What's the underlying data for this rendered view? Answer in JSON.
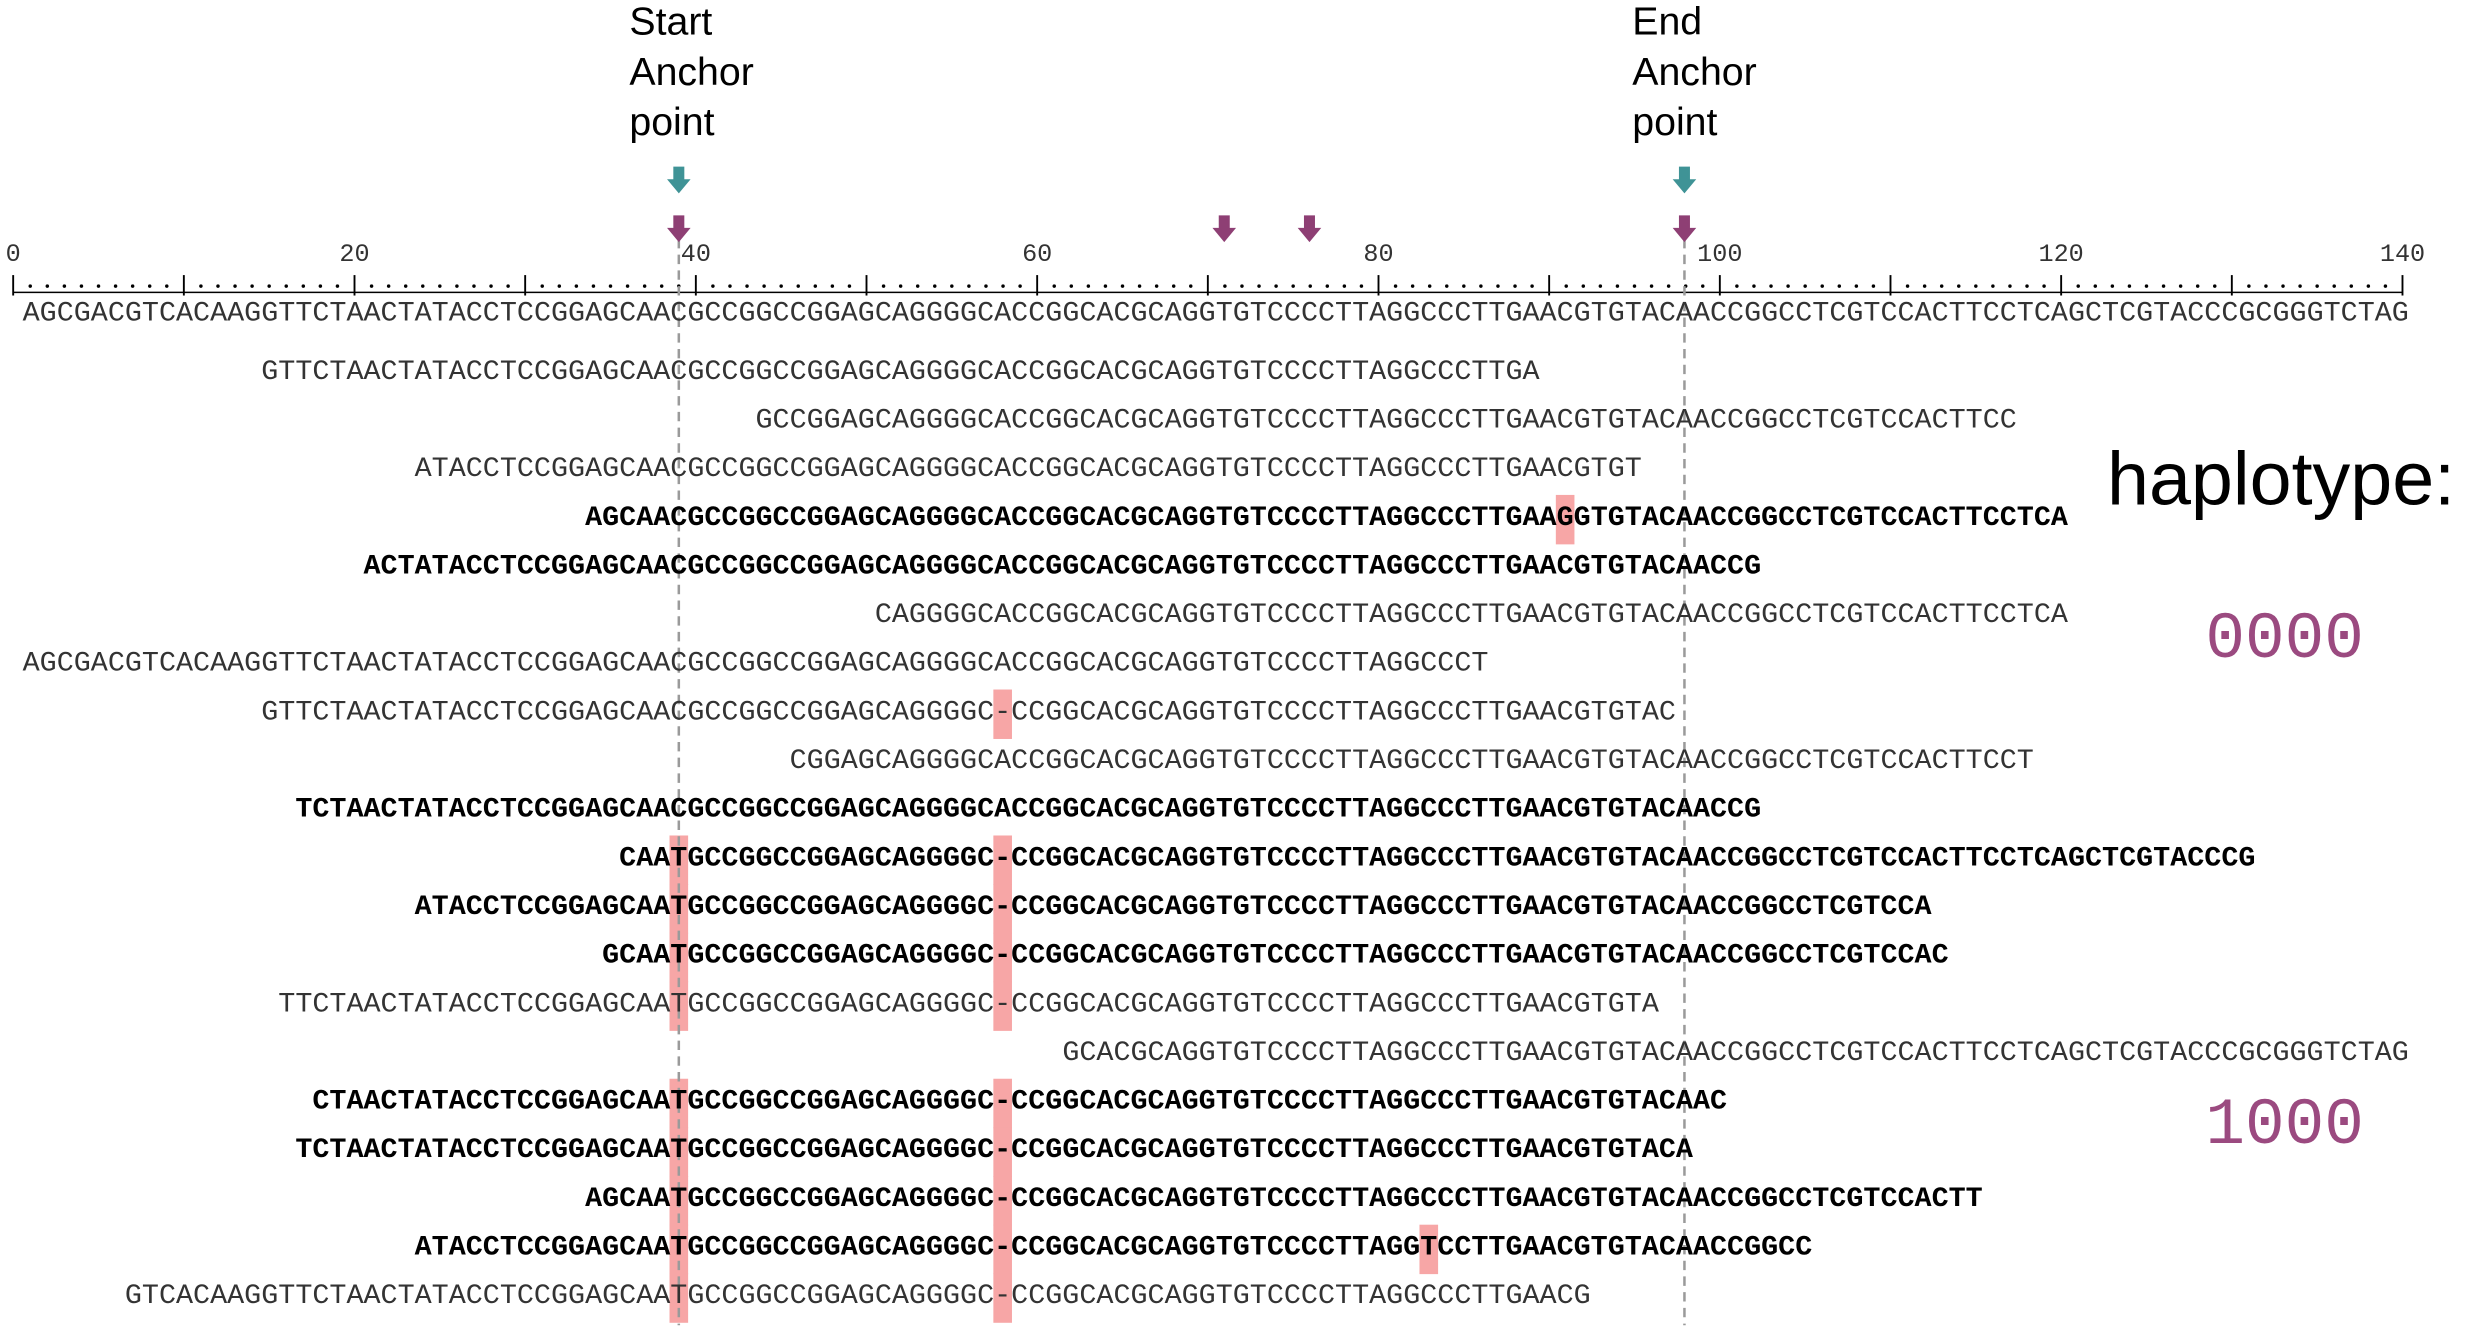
{
  "annotations": {
    "start_anchor": [
      "Start",
      "Anchor",
      "point"
    ],
    "end_anchor": [
      "End",
      "Anchor",
      "point"
    ]
  },
  "haplotype_label": "haplotype:",
  "haplotypes": [
    "0000",
    "1000"
  ],
  "ruler": {
    "ticks": [
      0,
      20,
      40,
      60,
      80,
      100,
      120,
      140
    ]
  },
  "reference": "AGCGACGTCACAAGGTTCTAACTATACCTCCGGAGCAACGCCGGCCGGAGCAGGGGCACCGGCACGCAGGTGTCCCCTTAGGCCCTTGAACGTGTACAACCGGCCTCGTCCACTTCCTCAGCTCGTACCCGCGGGTCTAG",
  "reads": [
    {
      "sequence": "GTTCTAACTATACCTCCGGAGCAACGCCGGCCGGAGCAGGGGCACCGGCACGCAGGTGTCCCCTTAGGCCCTTGA",
      "bold": false
    },
    {
      "sequence": "GCCGGAGCAGGGGCACCGGCACGCAGGTGTCCCCTTAGGCCCTTGAACGTGTACAACCGGCCTCGTCCACTTCC",
      "bold": false
    },
    {
      "sequence": "ATACCTCCGGAGCAACGCCGGCCGGAGCAGGGGCACCGGCACGCAGGTGTCCCCTTAGGCCCTTGAACGTGT",
      "bold": false
    },
    {
      "sequence": "AGCAACGCCGGCCGGAGCAGGGGCACCGGCACGCAGGTGTCCCCTTAGGCCCTTGAAGGTGTACAACCGGCCTCGTCCACTTCCTCA",
      "bold": true
    },
    {
      "sequence": "ACTATACCTCCGGAGCAACGCCGGCCGGAGCAGGGGCACCGGCACGCAGGTGTCCCCTTAGGCCCTTGAACGTGTACAACCG",
      "bold": true
    },
    {
      "sequence": "CAGGGGCACCGGCACGCAGGTGTCCCCTTAGGCCCTTGAACGTGTACAACCGGCCTCGTCCACTTCCTCA",
      "bold": false
    },
    {
      "sequence": "AGCGACGTCACAAGGTTCTAACTATACCTCCGGAGCAACGCCGGCCGGAGCAGGGGCACCGGCACGCAGGTGTCCCCTTAGGCCCT",
      "bold": false
    },
    {
      "sequence": "GTTCTAACTATACCTCCGGAGCAACGCCGGCCGGAGCAGGGGC-CCGGCACGCAGGTGTCCCCTTAGGCCCTTGAACGTGTAC",
      "bold": false
    },
    {
      "sequence": "CGGAGCAGGGGCACCGGCACGCAGGTGTCCCCTTAGGCCCTTGAACGTGTACAACCGGCCTCGTCCACTTCCT",
      "bold": false
    },
    {
      "sequence": "TCTAACTATACCTCCGGAGCAACGCCGGCCGGAGCAGGGGCACCGGCACGCAGGTGTCCCCTTAGGCCCTTGAACGTGTACAACCG",
      "bold": true
    },
    {
      "sequence": "CAATGCCGGCCGGAGCAGGGGC-CCGGCACGCAGGTGTCCCCTTAGGCCCTTGAACGTGTACAACCGGCCTCGTCCACTTCCTCAGCTCGTACCCG",
      "bold": true
    },
    {
      "sequence": "ATACCTCCGGAGCAATGCCGGCCGGAGCAGGGGC-CCGGCACGCAGGTGTCCCCTTAGGCCCTTGAACGTGTACAACCGGCCTCGTCCA",
      "bold": true
    },
    {
      "sequence": "GCAATGCCGGCCGGAGCAGGGGC-CCGGCACGCAGGTGTCCCCTTAGGCCCTTGAACGTGTACAACCGGCCTCGTCCAC",
      "bold": true
    },
    {
      "sequence": "TTCTAACTATACCTCCGGAGCAATGCCGGCCGGAGCAGGGGC-CCGGCACGCAGGTGTCCCCTTAGGCCCTTGAACGTGTA",
      "bold": false
    },
    {
      "sequence": "GCACGCAGGTGTCCCCTTAGGCCCTTGAACGTGTACAACCGGCCTCGTCCACTTCCTCAGCTCGTACCCGCGGGTCTAG",
      "bold": false
    },
    {
      "sequence": "CTAACTATACCTCCGGAGCAATGCCGGCCGGAGCAGGGGC-CCGGCACGCAGGTGTCCCCTTAGGCCCTTGAACGTGTACAAC",
      "bold": true
    },
    {
      "sequence": "TCTAACTATACCTCCGGAGCAATGCCGGCCGGAGCAGGGGC-CCGGCACGCAGGTGTCCCCTTAGGCCCTTGAACGTGTACA",
      "bold": true
    },
    {
      "sequence": "AGCAATGCCGGCCGGAGCAGGGGC-CCGGCACGCAGGTGTCCCCTTAGGCCCTTGAACGTGTACAACCGGCCTCGTCCACTT",
      "bold": true
    },
    {
      "sequence": "ATACCTCCGGAGCAATGCCGGCCGGAGCAGGGGC-CCGGCACGCAGGTGTCCCCTTAGGTCCTTGAACGTGTACAACCGGCC",
      "bold": true
    },
    {
      "sequence": "GTCACAAGGTTCTAACTATACCTCCGGAGCAATGCCGGCCGGAGCAGGGGC-CCGGCACGCAGGTGTCCCCTTAGGCCCTTGAACG",
      "bold": false
    }
  ]
}
